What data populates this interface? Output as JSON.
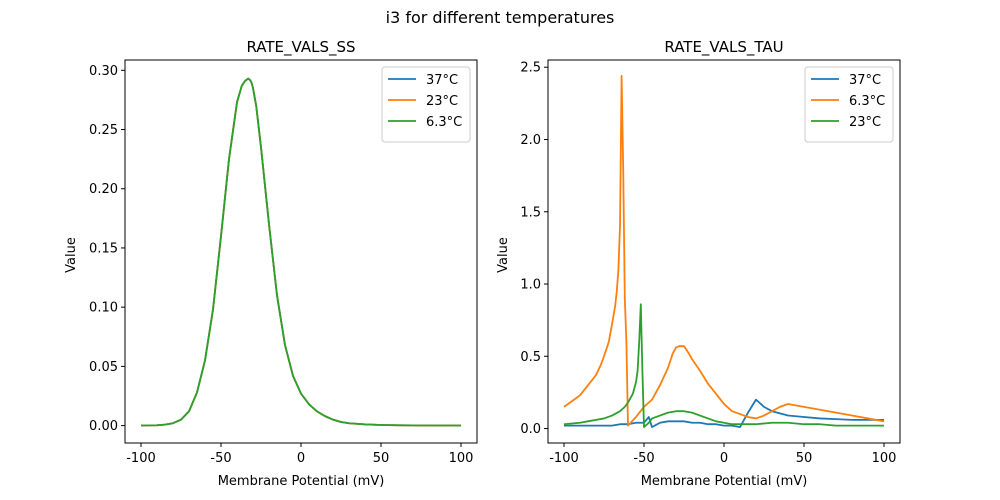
{
  "figure": {
    "suptitle": "i3 for different temperatures"
  },
  "chart_data": [
    {
      "type": "line",
      "title": "RATE_VALS_SS",
      "xlabel": "Membrane Potential (mV)",
      "ylabel": "Value",
      "xlim": [
        -110,
        110
      ],
      "ylim": [
        -0.0147,
        0.3087
      ],
      "xticks": [
        -100,
        -50,
        0,
        50,
        100
      ],
      "yticks": [
        0.0,
        0.05,
        0.1,
        0.15,
        0.2,
        0.25,
        0.3
      ],
      "ytick_labels": [
        "0.00",
        "0.05",
        "0.10",
        "0.15",
        "0.20",
        "0.25",
        "0.30"
      ],
      "legend_position": "top-right",
      "series": [
        {
          "name": "37°C",
          "color": "#1f77b4",
          "x": [
            -100,
            -95,
            -90,
            -85,
            -80,
            -75,
            -70,
            -65,
            -60,
            -55,
            -50,
            -45,
            -40,
            -37,
            -35,
            -33,
            -32,
            -31,
            -30,
            -28,
            -25,
            -20,
            -15,
            -10,
            -5,
            0,
            5,
            10,
            15,
            20,
            25,
            30,
            40,
            50,
            60,
            70,
            80,
            90,
            100
          ],
          "y": [
            0.0001,
            0.0002,
            0.0003,
            0.0008,
            0.002,
            0.005,
            0.012,
            0.028,
            0.055,
            0.098,
            0.16,
            0.225,
            0.273,
            0.287,
            0.291,
            0.293,
            0.292,
            0.29,
            0.285,
            0.27,
            0.235,
            0.17,
            0.11,
            0.068,
            0.042,
            0.027,
            0.018,
            0.012,
            0.008,
            0.005,
            0.003,
            0.002,
            0.001,
            0.0005,
            0.0003,
            0.0002,
            0.0001,
            0.0001,
            0.0001
          ]
        },
        {
          "name": "23°C",
          "color": "#ff7f0e",
          "x": [
            -100,
            -95,
            -90,
            -85,
            -80,
            -75,
            -70,
            -65,
            -60,
            -55,
            -50,
            -45,
            -40,
            -37,
            -35,
            -33,
            -32,
            -31,
            -30,
            -28,
            -25,
            -20,
            -15,
            -10,
            -5,
            0,
            5,
            10,
            15,
            20,
            25,
            30,
            40,
            50,
            60,
            70,
            80,
            90,
            100
          ],
          "y": [
            0.0001,
            0.0002,
            0.0003,
            0.0008,
            0.002,
            0.005,
            0.012,
            0.028,
            0.055,
            0.098,
            0.16,
            0.225,
            0.273,
            0.287,
            0.291,
            0.293,
            0.292,
            0.29,
            0.285,
            0.27,
            0.235,
            0.17,
            0.11,
            0.068,
            0.042,
            0.027,
            0.018,
            0.012,
            0.008,
            0.005,
            0.003,
            0.002,
            0.001,
            0.0005,
            0.0003,
            0.0002,
            0.0001,
            0.0001,
            0.0001
          ]
        },
        {
          "name": "6.3°C",
          "color": "#2ca02c",
          "x": [
            -100,
            -95,
            -90,
            -85,
            -80,
            -75,
            -70,
            -65,
            -60,
            -55,
            -50,
            -45,
            -40,
            -37,
            -35,
            -33,
            -32,
            -31,
            -30,
            -28,
            -25,
            -20,
            -15,
            -10,
            -5,
            0,
            5,
            10,
            15,
            20,
            25,
            30,
            40,
            50,
            60,
            70,
            80,
            90,
            100
          ],
          "y": [
            0.0001,
            0.0002,
            0.0003,
            0.0008,
            0.002,
            0.005,
            0.012,
            0.028,
            0.055,
            0.098,
            0.16,
            0.225,
            0.273,
            0.287,
            0.291,
            0.293,
            0.292,
            0.29,
            0.285,
            0.27,
            0.235,
            0.17,
            0.11,
            0.068,
            0.042,
            0.027,
            0.018,
            0.012,
            0.008,
            0.005,
            0.003,
            0.002,
            0.001,
            0.0005,
            0.0003,
            0.0002,
            0.0001,
            0.0001,
            0.0001
          ]
        }
      ]
    },
    {
      "type": "line",
      "title": "RATE_VALS_TAU",
      "xlabel": "Membrane Potential (mV)",
      "ylabel": "Value",
      "xlim": [
        -110,
        110
      ],
      "ylim": [
        -0.1,
        2.55
      ],
      "xticks": [
        -100,
        -50,
        0,
        50,
        100
      ],
      "yticks": [
        0.0,
        0.5,
        1.0,
        1.5,
        2.0,
        2.5
      ],
      "ytick_labels": [
        "0.0",
        "0.5",
        "1.0",
        "1.5",
        "2.0",
        "2.5"
      ],
      "legend_position": "top-right",
      "series": [
        {
          "name": "37°C",
          "color": "#1f77b4",
          "x": [
            -100,
            -90,
            -80,
            -70,
            -65,
            -60,
            -55,
            -50,
            -47,
            -45,
            -40,
            -35,
            -30,
            -25,
            -20,
            -15,
            -10,
            -5,
            0,
            5,
            10,
            15,
            20,
            25,
            30,
            40,
            50,
            60,
            70,
            80,
            90,
            100
          ],
          "y": [
            0.02,
            0.02,
            0.02,
            0.02,
            0.03,
            0.03,
            0.04,
            0.04,
            0.08,
            0.01,
            0.04,
            0.05,
            0.05,
            0.05,
            0.04,
            0.04,
            0.03,
            0.03,
            0.02,
            0.02,
            0.01,
            0.11,
            0.2,
            0.15,
            0.12,
            0.09,
            0.08,
            0.07,
            0.065,
            0.06,
            0.06,
            0.06
          ]
        },
        {
          "name": "6.3°C",
          "color": "#ff7f0e",
          "x": [
            -100,
            -95,
            -90,
            -85,
            -80,
            -77,
            -75,
            -72,
            -70,
            -68,
            -67,
            -66,
            -65,
            -64,
            -63,
            -62,
            -61,
            -60,
            -55,
            -50,
            -45,
            -40,
            -35,
            -32,
            -30,
            -28,
            -25,
            -22,
            -20,
            -15,
            -10,
            -5,
            0,
            5,
            10,
            15,
            20,
            25,
            30,
            35,
            40,
            50,
            60,
            70,
            80,
            90,
            100
          ],
          "y": [
            0.15,
            0.19,
            0.23,
            0.3,
            0.37,
            0.44,
            0.5,
            0.6,
            0.72,
            0.85,
            0.95,
            1.1,
            1.4,
            2.44,
            1.8,
            0.9,
            0.6,
            0.02,
            0.08,
            0.15,
            0.2,
            0.3,
            0.42,
            0.52,
            0.56,
            0.57,
            0.57,
            0.52,
            0.48,
            0.4,
            0.31,
            0.24,
            0.17,
            0.12,
            0.1,
            0.08,
            0.07,
            0.09,
            0.12,
            0.15,
            0.17,
            0.15,
            0.13,
            0.11,
            0.09,
            0.07,
            0.05
          ]
        },
        {
          "name": "23°C",
          "color": "#2ca02c",
          "x": [
            -100,
            -95,
            -90,
            -85,
            -80,
            -75,
            -70,
            -65,
            -62,
            -60,
            -57,
            -55,
            -54,
            -53,
            -52,
            -51,
            -50,
            -47,
            -45,
            -40,
            -35,
            -30,
            -25,
            -20,
            -15,
            -10,
            -5,
            0,
            5,
            10,
            20,
            30,
            40,
            50,
            60,
            70,
            80,
            90,
            100
          ],
          "y": [
            0.03,
            0.035,
            0.04,
            0.05,
            0.06,
            0.07,
            0.09,
            0.12,
            0.15,
            0.18,
            0.24,
            0.32,
            0.4,
            0.6,
            0.86,
            0.4,
            0.01,
            0.04,
            0.07,
            0.09,
            0.11,
            0.12,
            0.12,
            0.11,
            0.09,
            0.07,
            0.05,
            0.04,
            0.03,
            0.03,
            0.03,
            0.04,
            0.04,
            0.03,
            0.03,
            0.02,
            0.02,
            0.02,
            0.02
          ]
        }
      ]
    }
  ]
}
